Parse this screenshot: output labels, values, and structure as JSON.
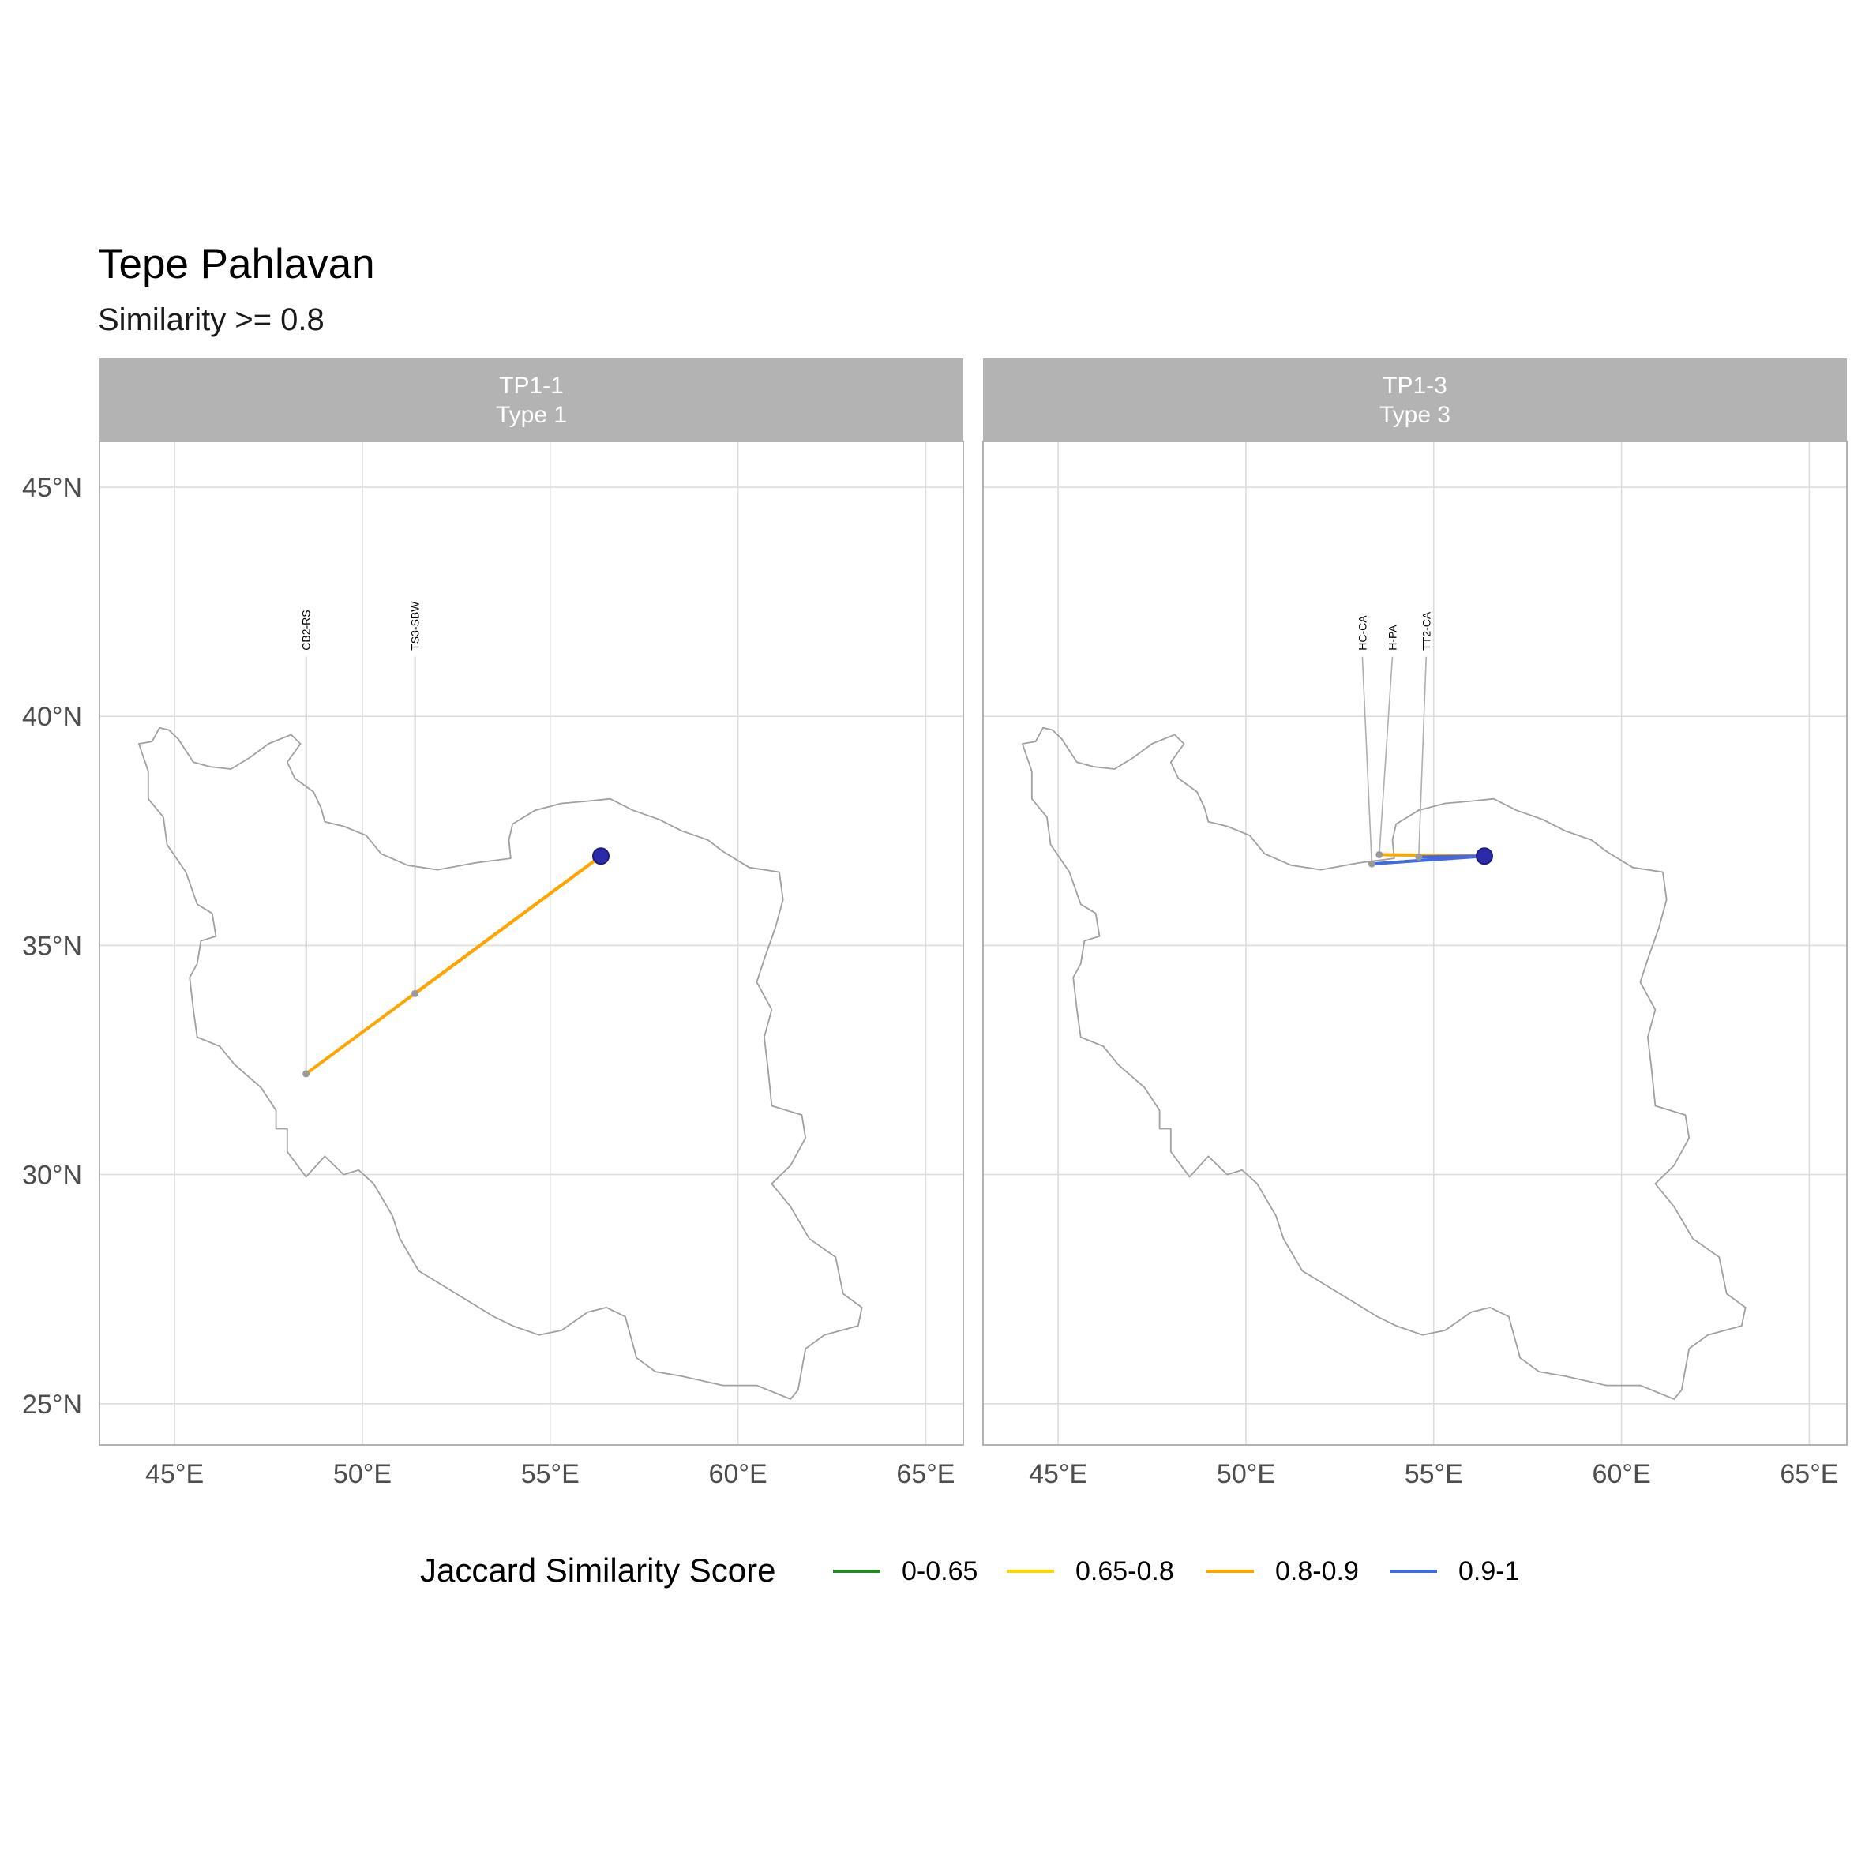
{
  "title": "Tepe Pahlavan",
  "subtitle": "Similarity >= 0.8",
  "x_axis": {
    "ticks": [
      45,
      50,
      55,
      60,
      65
    ],
    "tick_labels": [
      "45°E",
      "50°E",
      "55°E",
      "60°E",
      "65°E"
    ],
    "range": [
      43,
      66
    ]
  },
  "y_axis": {
    "ticks": [
      25,
      30,
      35,
      40,
      45
    ],
    "tick_labels": [
      "25°N",
      "30°N",
      "35°N",
      "40°N",
      "45°N"
    ],
    "range": [
      24.1,
      46
    ]
  },
  "colors": {
    "panel_strip": "#b3b3b3",
    "strip_text": "#ffffff",
    "grid": "#dddddd",
    "panel_border": "#b3b3b3",
    "country_outline": "#a0a0a0",
    "site_point": "#9a9a9a",
    "label_line": "#b0b0b0",
    "origin_point": "#2a2aaa"
  },
  "origin": {
    "name": "Tepe Pahlavan",
    "lon": 56.35,
    "lat": 36.95
  },
  "panels": [
    {
      "strip_line1": "TP1-1",
      "strip_line2": "Type 1",
      "connections": [
        {
          "label": "CB2-RS",
          "lon": 48.5,
          "lat": 32.2,
          "category": "0.8-0.9",
          "label_lon": 48.5,
          "label_lat": 41.3
        },
        {
          "label": "TS3-SBW",
          "lon": 51.4,
          "lat": 33.95,
          "category": "0.8-0.9",
          "label_lon": 51.4,
          "label_lat": 41.3
        }
      ]
    },
    {
      "strip_line1": "TP1-3",
      "strip_line2": "Type 3",
      "connections": [
        {
          "label": "HC-CA",
          "lon": 53.35,
          "lat": 36.78,
          "category": "0.9-1",
          "label_lon": 53.1,
          "label_lat": 41.3
        },
        {
          "label": "H-PA",
          "lon": 53.55,
          "lat": 36.98,
          "category": "0.8-0.9",
          "label_lon": 53.9,
          "label_lat": 41.3
        },
        {
          "label": "TT2-CA",
          "lon": 54.6,
          "lat": 36.93,
          "category": "0.9-1",
          "label_lon": 54.8,
          "label_lat": 41.3
        }
      ]
    }
  ],
  "legend": {
    "title": "Jaccard Similarity Score",
    "items": [
      {
        "label": "0-0.65",
        "color": "#228b22"
      },
      {
        "label": "0.65-0.8",
        "color": "#ffd700"
      },
      {
        "label": "0.8-0.9",
        "color": "#ffa500"
      },
      {
        "label": "0.9-1",
        "color": "#4169e1"
      }
    ]
  },
  "country_outline": [
    [
      44.05,
      39.4
    ],
    [
      44.4,
      39.45
    ],
    [
      44.6,
      39.75
    ],
    [
      44.85,
      39.7
    ],
    [
      45.1,
      39.5
    ],
    [
      45.5,
      39.0
    ],
    [
      45.95,
      38.9
    ],
    [
      46.5,
      38.85
    ],
    [
      47.0,
      39.1
    ],
    [
      47.5,
      39.4
    ],
    [
      48.1,
      39.6
    ],
    [
      48.35,
      39.4
    ],
    [
      48.0,
      39.0
    ],
    [
      48.2,
      38.65
    ],
    [
      48.7,
      38.35
    ],
    [
      48.9,
      38.0
    ],
    [
      49.0,
      37.7
    ],
    [
      49.5,
      37.6
    ],
    [
      50.1,
      37.4
    ],
    [
      50.5,
      37.0
    ],
    [
      51.2,
      36.75
    ],
    [
      52.0,
      36.65
    ],
    [
      53.0,
      36.8
    ],
    [
      53.95,
      36.9
    ],
    [
      53.9,
      37.3
    ],
    [
      54.0,
      37.65
    ],
    [
      54.6,
      37.95
    ],
    [
      55.3,
      38.1
    ],
    [
      56.0,
      38.15
    ],
    [
      56.6,
      38.2
    ],
    [
      57.2,
      37.95
    ],
    [
      57.9,
      37.75
    ],
    [
      58.5,
      37.5
    ],
    [
      59.2,
      37.3
    ],
    [
      59.6,
      37.05
    ],
    [
      60.3,
      36.7
    ],
    [
      61.1,
      36.6
    ],
    [
      61.2,
      36.0
    ],
    [
      61.0,
      35.4
    ],
    [
      60.7,
      34.7
    ],
    [
      60.5,
      34.2
    ],
    [
      60.9,
      33.6
    ],
    [
      60.7,
      33.0
    ],
    [
      60.8,
      32.3
    ],
    [
      60.9,
      31.5
    ],
    [
      61.7,
      31.3
    ],
    [
      61.8,
      30.8
    ],
    [
      61.4,
      30.2
    ],
    [
      60.9,
      29.8
    ],
    [
      61.4,
      29.3
    ],
    [
      61.9,
      28.6
    ],
    [
      62.6,
      28.2
    ],
    [
      62.8,
      27.4
    ],
    [
      63.3,
      27.1
    ],
    [
      63.2,
      26.7
    ],
    [
      62.3,
      26.5
    ],
    [
      61.8,
      26.2
    ],
    [
      61.6,
      25.3
    ],
    [
      61.4,
      25.1
    ],
    [
      60.5,
      25.4
    ],
    [
      59.6,
      25.4
    ],
    [
      58.5,
      25.6
    ],
    [
      57.8,
      25.7
    ],
    [
      57.3,
      26.0
    ],
    [
      57.0,
      26.9
    ],
    [
      56.5,
      27.1
    ],
    [
      56.0,
      27.0
    ],
    [
      55.3,
      26.6
    ],
    [
      54.7,
      26.5
    ],
    [
      54.0,
      26.7
    ],
    [
      53.5,
      26.9
    ],
    [
      52.5,
      27.4
    ],
    [
      51.5,
      27.9
    ],
    [
      51.0,
      28.6
    ],
    [
      50.8,
      29.1
    ],
    [
      50.3,
      29.8
    ],
    [
      49.9,
      30.1
    ],
    [
      49.5,
      30.0
    ],
    [
      49.0,
      30.4
    ],
    [
      48.5,
      29.95
    ],
    [
      48.0,
      30.5
    ],
    [
      48.0,
      31.0
    ],
    [
      47.7,
      31.0
    ],
    [
      47.7,
      31.4
    ],
    [
      47.3,
      31.9
    ],
    [
      46.6,
      32.4
    ],
    [
      46.2,
      32.8
    ],
    [
      45.6,
      33.0
    ],
    [
      45.5,
      33.6
    ],
    [
      45.4,
      34.3
    ],
    [
      45.6,
      34.6
    ],
    [
      45.7,
      35.1
    ],
    [
      46.1,
      35.2
    ],
    [
      46.0,
      35.7
    ],
    [
      45.6,
      35.9
    ],
    [
      45.3,
      36.6
    ],
    [
      44.8,
      37.2
    ],
    [
      44.7,
      37.8
    ],
    [
      44.3,
      38.2
    ],
    [
      44.3,
      38.8
    ],
    [
      44.05,
      39.4
    ]
  ]
}
